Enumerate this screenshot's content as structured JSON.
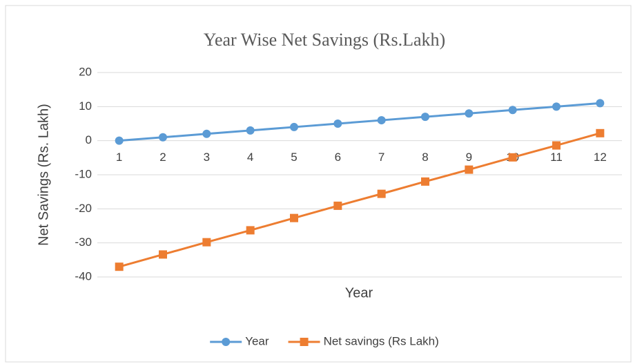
{
  "chart_data": {
    "type": "line",
    "title": "Year Wise Net Savings (Rs.Lakh)",
    "x_label": "Year",
    "y_label": "Net Savings (Rs. Lakh)",
    "categories": [
      "1",
      "2",
      "3",
      "4",
      "5",
      "6",
      "7",
      "8",
      "9",
      "10",
      "11",
      "12"
    ],
    "series": [
      {
        "name": "Year",
        "color": "#5b9bd5",
        "marker": "circle",
        "values": [
          0,
          1,
          2,
          3,
          4,
          5,
          6,
          7,
          8,
          9,
          10,
          11
        ]
      },
      {
        "name": "Net savings (Rs Lakh)",
        "color": "#ed7d31",
        "marker": "square",
        "values": [
          -37,
          -33.4,
          -29.8,
          -26.3,
          -22.7,
          -19.1,
          -15.6,
          -12,
          -8.5,
          -4.9,
          -1.4,
          2.2
        ]
      }
    ],
    "ylim": [
      -40,
      20
    ],
    "yticks": [
      -40,
      -30,
      -20,
      -10,
      0,
      10,
      20
    ],
    "grid": true,
    "legend": "bottom"
  }
}
